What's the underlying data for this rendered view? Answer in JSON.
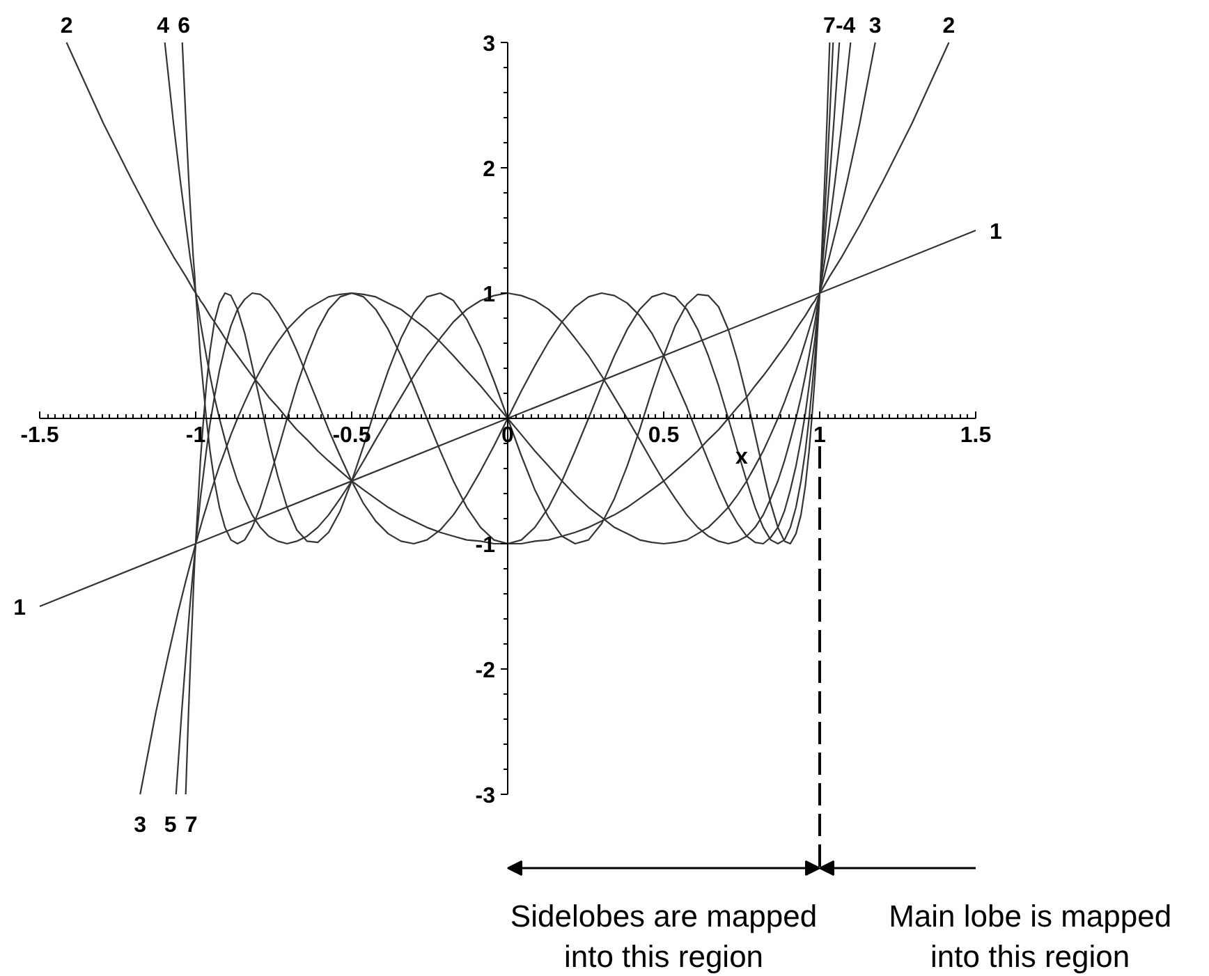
{
  "chart_data": {
    "type": "line",
    "xlabel": "x",
    "xlim": [
      -1.5,
      1.5
    ],
    "ylim": [
      -3,
      3
    ],
    "xticks": [
      -1.5,
      -1,
      -0.5,
      0,
      0.5,
      1,
      1.5
    ],
    "yticks": [
      -3,
      -2,
      -1,
      1,
      2,
      3
    ],
    "series": [
      {
        "color": "#333333",
        "x": [
          -1.5,
          1.5
        ],
        "values": [
          -1.5,
          1.5
        ]
      },
      {
        "color": "#333333",
        "x": [
          -1.414,
          -1.295,
          -1.202,
          -1.128,
          -1.071,
          -1.031,
          -1.008,
          -1,
          -0.999,
          -0.996,
          -0.991,
          -0.985,
          -0.976,
          -0.966,
          -0.954,
          -0.94,
          -0.924,
          -0.906,
          -0.887,
          -0.866,
          -0.843,
          -0.819,
          -0.793,
          -0.766,
          -0.737,
          -0.707,
          -0.676,
          -0.643,
          -0.609,
          -0.574,
          -0.537,
          -0.5,
          -0.462,
          -0.423,
          -0.383,
          -0.342,
          -0.301,
          -0.259,
          -0.216,
          -0.174,
          -0.131,
          -0.087,
          -0.044,
          0,
          0.044,
          0.087,
          0.131,
          0.174,
          0.216,
          0.259,
          0.301,
          0.342,
          0.383,
          0.423,
          0.462,
          0.5,
          0.537,
          0.574,
          0.609,
          0.643,
          0.676,
          0.707,
          0.737,
          0.766,
          0.793,
          0.819,
          0.843,
          0.866,
          0.887,
          0.906,
          0.924,
          0.94,
          0.954,
          0.966,
          0.976,
          0.985,
          0.991,
          0.996,
          0.999,
          1,
          1.008,
          1.031,
          1.071,
          1.128,
          1.202,
          1.295,
          1.414
        ],
        "values": [
          3,
          2.35,
          1.89,
          1.54,
          1.29,
          1.13,
          1.03,
          1,
          1,
          0.98,
          0.97,
          0.94,
          0.91,
          0.87,
          0.82,
          0.77,
          0.71,
          0.64,
          0.57,
          0.5,
          0.42,
          0.34,
          0.26,
          0.17,
          0.09,
          0,
          -0.09,
          -0.17,
          -0.26,
          -0.34,
          -0.42,
          -0.5,
          -0.57,
          -0.64,
          -0.71,
          -0.77,
          -0.82,
          -0.87,
          -0.91,
          -0.94,
          -0.97,
          -0.98,
          -1,
          -1,
          -1,
          -0.98,
          -0.97,
          -0.94,
          -0.91,
          -0.87,
          -0.82,
          -0.77,
          -0.71,
          -0.64,
          -0.57,
          -0.5,
          -0.42,
          -0.34,
          -0.26,
          -0.17,
          -0.09,
          0,
          0.09,
          0.17,
          0.26,
          0.34,
          0.42,
          0.5,
          0.57,
          0.64,
          0.71,
          0.77,
          0.82,
          0.87,
          0.91,
          0.94,
          0.97,
          0.98,
          1,
          1,
          1.03,
          1.13,
          1.29,
          1.54,
          1.89,
          2.35,
          3
        ]
      },
      {
        "color": "#333333",
        "x": [
          -1.178,
          -1.128,
          -1.088,
          -1.056,
          -1.031,
          -1.014,
          -1.003,
          -1,
          -0.999,
          -0.996,
          -0.991,
          -0.985,
          -0.976,
          -0.966,
          -0.954,
          -0.94,
          -0.924,
          -0.906,
          -0.887,
          -0.866,
          -0.843,
          -0.819,
          -0.793,
          -0.766,
          -0.737,
          -0.707,
          -0.676,
          -0.643,
          -0.609,
          -0.574,
          -0.537,
          -0.5,
          -0.462,
          -0.423,
          -0.383,
          -0.342,
          -0.301,
          -0.259,
          -0.216,
          -0.174,
          -0.131,
          -0.087,
          -0.044,
          0,
          0.044,
          0.087,
          0.131,
          0.174,
          0.216,
          0.259,
          0.301,
          0.342,
          0.383,
          0.423,
          0.462,
          0.5,
          0.537,
          0.574,
          0.609,
          0.643,
          0.676,
          0.707,
          0.737,
          0.766,
          0.793,
          0.819,
          0.843,
          0.866,
          0.887,
          0.906,
          0.924,
          0.94,
          0.954,
          0.966,
          0.976,
          0.985,
          0.991,
          0.996,
          0.999,
          1,
          1.003,
          1.014,
          1.031,
          1.056,
          1.088,
          1.128,
          1.178
        ],
        "values": [
          -3,
          -2.35,
          -1.89,
          -1.54,
          -1.29,
          -1.13,
          -1.03,
          -1,
          -0.99,
          -0.97,
          -0.92,
          -0.87,
          -0.79,
          -0.71,
          -0.61,
          -0.5,
          -0.38,
          -0.26,
          -0.13,
          0,
          0.13,
          0.26,
          0.38,
          0.5,
          0.61,
          0.71,
          0.79,
          0.87,
          0.92,
          0.97,
          0.99,
          1,
          0.99,
          0.97,
          0.92,
          0.87,
          0.79,
          0.71,
          0.61,
          0.5,
          0.38,
          0.26,
          0.13,
          0,
          -0.13,
          -0.26,
          -0.38,
          -0.5,
          -0.61,
          -0.71,
          -0.79,
          -0.87,
          -0.92,
          -0.97,
          -0.99,
          -1,
          -0.99,
          -0.97,
          -0.92,
          -0.87,
          -0.79,
          -0.71,
          -0.61,
          -0.5,
          -0.38,
          -0.26,
          -0.13,
          0,
          0.13,
          0.26,
          0.38,
          0.5,
          0.61,
          0.71,
          0.79,
          0.87,
          0.92,
          0.97,
          0.99,
          1,
          1.03,
          1.13,
          1.29,
          1.54,
          1.89,
          2.35,
          3
        ]
      },
      {
        "color": "#333333",
        "x": [
          -1.099,
          -1.071,
          -1.049,
          -1.031,
          -1.018,
          -1.008,
          -1.002,
          -1,
          -0.999,
          -0.996,
          -0.991,
          -0.985,
          -0.976,
          -0.966,
          -0.954,
          -0.94,
          -0.924,
          -0.906,
          -0.887,
          -0.866,
          -0.843,
          -0.819,
          -0.793,
          -0.766,
          -0.737,
          -0.707,
          -0.676,
          -0.643,
          -0.609,
          -0.574,
          -0.537,
          -0.5,
          -0.462,
          -0.423,
          -0.383,
          -0.342,
          -0.301,
          -0.259,
          -0.216,
          -0.174,
          -0.131,
          -0.087,
          -0.044,
          0,
          0.044,
          0.087,
          0.131,
          0.174,
          0.216,
          0.259,
          0.301,
          0.342,
          0.383,
          0.423,
          0.462,
          0.5,
          0.537,
          0.574,
          0.609,
          0.643,
          0.676,
          0.707,
          0.737,
          0.766,
          0.793,
          0.819,
          0.843,
          0.866,
          0.887,
          0.906,
          0.924,
          0.94,
          0.954,
          0.966,
          0.976,
          0.985,
          0.991,
          0.996,
          0.999,
          1,
          1.002,
          1.008,
          1.018,
          1.031,
          1.049,
          1.071,
          1.099
        ],
        "values": [
          3,
          2.35,
          1.89,
          1.54,
          1.29,
          1.13,
          1.03,
          1,
          0.98,
          0.94,
          0.87,
          0.77,
          0.64,
          0.5,
          0.34,
          0.17,
          0,
          -0.17,
          -0.34,
          -0.5,
          -0.64,
          -0.77,
          -0.87,
          -0.94,
          -0.98,
          -1,
          -0.98,
          -0.94,
          -0.87,
          -0.77,
          -0.64,
          -0.5,
          -0.34,
          -0.17,
          0,
          0.17,
          0.34,
          0.5,
          0.64,
          0.77,
          0.87,
          0.94,
          0.98,
          1,
          0.98,
          0.94,
          0.87,
          0.77,
          0.64,
          0.5,
          0.34,
          0.17,
          0,
          -0.17,
          -0.34,
          -0.5,
          -0.64,
          -0.77,
          -0.87,
          -0.94,
          -0.98,
          -1,
          -0.98,
          -0.94,
          -0.87,
          -0.77,
          -0.64,
          -0.5,
          -0.34,
          -0.17,
          0,
          0.17,
          0.34,
          0.5,
          0.64,
          0.77,
          0.87,
          0.94,
          0.98,
          1,
          1.03,
          1.13,
          1.29,
          1.54,
          1.89,
          2.35,
          3
        ]
      },
      {
        "color": "#333333",
        "x": [
          -1.063,
          -1.045,
          -1.031,
          -1.02,
          -1.011,
          -1.005,
          -1.001,
          -1,
          -0.999,
          -0.996,
          -0.991,
          -0.985,
          -0.976,
          -0.966,
          -0.954,
          -0.94,
          -0.924,
          -0.906,
          -0.887,
          -0.866,
          -0.843,
          -0.819,
          -0.793,
          -0.766,
          -0.737,
          -0.707,
          -0.676,
          -0.643,
          -0.609,
          -0.574,
          -0.537,
          -0.5,
          -0.462,
          -0.423,
          -0.383,
          -0.342,
          -0.301,
          -0.259,
          -0.216,
          -0.174,
          -0.131,
          -0.087,
          -0.044,
          0,
          0.044,
          0.087,
          0.131,
          0.174,
          0.216,
          0.259,
          0.301,
          0.342,
          0.383,
          0.423,
          0.462,
          0.5,
          0.537,
          0.574,
          0.609,
          0.643,
          0.676,
          0.707,
          0.737,
          0.766,
          0.793,
          0.819,
          0.843,
          0.866,
          0.887,
          0.906,
          0.924,
          0.94,
          0.954,
          0.966,
          0.976,
          0.985,
          0.991,
          0.996,
          0.999,
          1,
          1.001,
          1.005,
          1.011,
          1.02,
          1.031,
          1.045,
          1.063
        ],
        "values": [
          -3,
          -2.35,
          -1.89,
          -1.54,
          -1.29,
          -1.13,
          -1.03,
          -1,
          -0.98,
          -0.91,
          -0.79,
          -0.64,
          -0.46,
          -0.26,
          -0.04,
          0.17,
          0.38,
          0.57,
          0.74,
          0.87,
          0.95,
          1,
          0.99,
          0.94,
          0.84,
          0.71,
          0.54,
          0.34,
          0.13,
          -0.09,
          -0.3,
          -0.5,
          -0.68,
          -0.82,
          -0.92,
          -0.98,
          -1,
          -0.97,
          -0.89,
          -0.77,
          -0.61,
          -0.42,
          -0.22,
          0,
          0.22,
          0.42,
          0.61,
          0.77,
          0.89,
          0.97,
          1,
          0.98,
          0.92,
          0.82,
          0.68,
          0.5,
          0.3,
          0.09,
          -0.13,
          -0.34,
          -0.54,
          -0.71,
          -0.84,
          -0.94,
          -0.99,
          -1,
          -0.95,
          -0.87,
          -0.74,
          -0.57,
          -0.38,
          -0.17,
          0.04,
          0.26,
          0.46,
          0.64,
          0.79,
          0.91,
          0.98,
          1,
          1.03,
          1.13,
          1.29,
          1.54,
          1.89,
          2.35,
          3
        ]
      },
      {
        "color": "#333333",
        "x": [
          -1.043,
          -1.031,
          -1.022,
          -1.014,
          -1.008,
          -1.003,
          -1.001,
          -1,
          -0.999,
          -0.996,
          -0.991,
          -0.985,
          -0.976,
          -0.966,
          -0.954,
          -0.94,
          -0.924,
          -0.906,
          -0.887,
          -0.866,
          -0.843,
          -0.819,
          -0.793,
          -0.766,
          -0.737,
          -0.707,
          -0.676,
          -0.643,
          -0.609,
          -0.574,
          -0.537,
          -0.5,
          -0.462,
          -0.423,
          -0.383,
          -0.342,
          -0.301,
          -0.259,
          -0.216,
          -0.174,
          -0.131,
          -0.087,
          -0.044,
          0,
          0.044,
          0.087,
          0.131,
          0.174,
          0.216,
          0.259,
          0.301,
          0.342,
          0.383,
          0.423,
          0.462,
          0.5,
          0.537,
          0.574,
          0.609,
          0.643,
          0.676,
          0.707,
          0.737,
          0.766,
          0.793,
          0.819,
          0.843,
          0.866,
          0.887,
          0.906,
          0.924,
          0.94,
          0.954,
          0.966,
          0.976,
          0.985,
          0.991,
          0.996,
          0.999,
          1,
          1.001,
          1.003,
          1.008,
          1.014,
          1.022,
          1.031,
          1.043
        ],
        "values": [
          3,
          2.35,
          1.89,
          1.54,
          1.29,
          1.13,
          1.03,
          1,
          0.97,
          0.87,
          0.71,
          0.5,
          0.26,
          0,
          -0.26,
          -0.5,
          -0.71,
          -0.87,
          -0.97,
          -1,
          -0.97,
          -0.87,
          -0.71,
          -0.5,
          -0.26,
          0,
          0.26,
          0.5,
          0.71,
          0.87,
          0.97,
          1,
          0.97,
          0.87,
          0.71,
          0.5,
          0.26,
          0,
          -0.26,
          -0.5,
          -0.71,
          -0.87,
          -0.97,
          -1,
          -0.97,
          -0.87,
          -0.71,
          -0.5,
          -0.26,
          0,
          0.26,
          0.5,
          0.71,
          0.87,
          0.97,
          1,
          0.97,
          0.87,
          0.71,
          0.5,
          0.26,
          0,
          -0.26,
          -0.5,
          -0.71,
          -0.87,
          -0.97,
          -1,
          -0.97,
          -0.87,
          -0.71,
          -0.5,
          -0.26,
          0,
          0.26,
          0.5,
          0.71,
          0.87,
          0.97,
          1,
          1.03,
          1.13,
          1.29,
          1.54,
          1.89,
          2.35,
          3
        ]
      },
      {
        "color": "#333333",
        "x": [
          -1.032,
          -1.023,
          -1.016,
          -1.01,
          -1.006,
          -1.003,
          -1.001,
          -1,
          -0.999,
          -0.996,
          -0.991,
          -0.985,
          -0.976,
          -0.966,
          -0.954,
          -0.94,
          -0.924,
          -0.906,
          -0.887,
          -0.866,
          -0.843,
          -0.819,
          -0.793,
          -0.766,
          -0.737,
          -0.707,
          -0.676,
          -0.643,
          -0.609,
          -0.574,
          -0.537,
          -0.5,
          -0.462,
          -0.423,
          -0.383,
          -0.342,
          -0.301,
          -0.259,
          -0.216,
          -0.174,
          -0.131,
          -0.087,
          -0.044,
          0,
          0.044,
          0.087,
          0.131,
          0.174,
          0.216,
          0.259,
          0.301,
          0.342,
          0.383,
          0.423,
          0.462,
          0.5,
          0.537,
          0.574,
          0.609,
          0.643,
          0.676,
          0.707,
          0.737,
          0.766,
          0.793,
          0.819,
          0.843,
          0.866,
          0.887,
          0.906,
          0.924,
          0.94,
          0.954,
          0.966,
          0.976,
          0.985,
          0.991,
          0.996,
          0.999,
          1,
          1.001,
          1.003,
          1.006,
          1.01,
          1.016,
          1.023,
          1.032
        ],
        "values": [
          -3,
          -2.35,
          -1.89,
          -1.54,
          -1.29,
          -1.13,
          -1.03,
          -1,
          -0.95,
          -0.82,
          -0.61,
          -0.34,
          -0.04,
          0.26,
          0.54,
          0.77,
          0.92,
          1,
          0.98,
          0.87,
          0.68,
          0.42,
          0.13,
          -0.17,
          -0.46,
          -0.71,
          -0.89,
          -0.98,
          -0.99,
          -0.91,
          -0.74,
          -0.5,
          -0.22,
          0.09,
          0.38,
          0.64,
          0.84,
          0.97,
          1,
          0.94,
          0.79,
          0.57,
          0.3,
          0,
          -0.3,
          -0.57,
          -0.79,
          -0.94,
          -1,
          -0.97,
          -0.84,
          -0.64,
          -0.38,
          -0.09,
          0.22,
          0.5,
          0.74,
          0.91,
          0.99,
          0.98,
          0.89,
          0.71,
          0.46,
          0.17,
          -0.13,
          -0.42,
          -0.68,
          -0.87,
          -0.98,
          -1,
          -0.92,
          -0.77,
          -0.54,
          -0.26,
          0.04,
          0.34,
          0.61,
          0.82,
          0.95,
          1,
          1.03,
          1.13,
          1.29,
          1.54,
          1.89,
          2.35,
          3
        ]
      }
    ],
    "annotations": [
      {
        "text": "1",
        "x": 1.5,
        "y": 1.5
      },
      {
        "text": "1",
        "x": -1.5,
        "y": -1.5
      },
      {
        "text": "2",
        "x": -1.414,
        "y": 3
      },
      {
        "text": "4",
        "x": -1.099,
        "y": 3
      },
      {
        "text": "6",
        "x": -1.043,
        "y": 3
      },
      {
        "text": "7-4",
        "x": 1.063,
        "y": 3
      },
      {
        "text": "3",
        "x": 1.178,
        "y": 3
      },
      {
        "text": "2",
        "x": 1.414,
        "y": 3
      },
      {
        "text": "3",
        "x": -1.178,
        "y": -3
      },
      {
        "text": "5",
        "x": -1.063,
        "y": -3
      },
      {
        "text": "7",
        "x": -1.032,
        "y": -3
      },
      "Sidelobes are mapped\ninto this region",
      "Main lobe is mapped\ninto this region"
    ],
    "ref_lines": [
      {
        "axis": "x",
        "value": 1,
        "line_style": "dashed"
      }
    ]
  }
}
